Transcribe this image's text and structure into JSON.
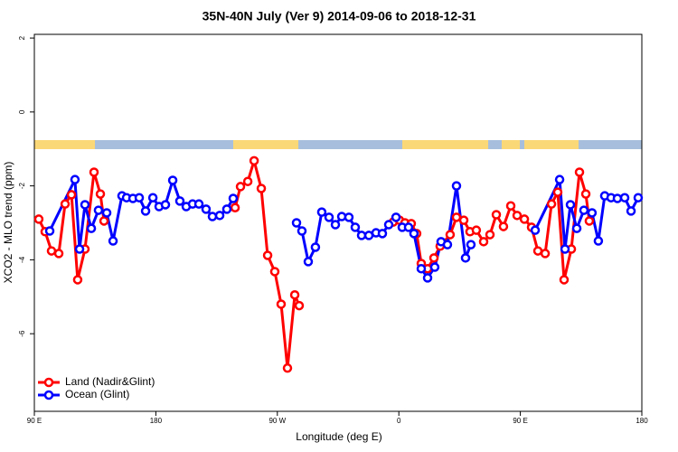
{
  "chart_data": {
    "type": "line",
    "title": "35N-40N July (Ver 9)   2014-09-06 to 2018-12-31",
    "x_label": "Longitude (deg E)",
    "y_label": "XCO2 - MLO trend (ppm)",
    "xlim": [
      90,
      540
    ],
    "xticks": [
      {
        "value": 90,
        "label": "90 E"
      },
      180,
      {
        "value": 270,
        "label": "90 W"
      },
      {
        "value": 360,
        "label": "0"
      },
      {
        "value": 450,
        "label": "90 E"
      },
      {
        "value": 540,
        "label": "180"
      }
    ],
    "ylim": [
      -8.1,
      2.1
    ],
    "yticks": [
      -6,
      -4,
      -2,
      0,
      2
    ],
    "legend": "bottom-left",
    "series": [
      {
        "name": "Land (Nadir&Glint)",
        "color": "#ff0000",
        "x": [
          93.3,
          98.0,
          102.7,
          108.1,
          112.8,
          117.5,
          122.1,
          127.5,
          134.2,
          138.9,
          141.6,
          null,
          238.7,
          242.7,
          248.1,
          252.8,
          258.1,
          262.8,
          268.1,
          272.8,
          277.5,
          282.9,
          286.2,
          null,
          355.8,
          360.5,
          364.5,
          369.2,
          373.2,
          376.6,
          381.3,
          386.0,
          390.6,
          398.0,
          402.7,
          408.1,
          412.7,
          417.4,
          422.8,
          427.5,
          432.2,
          437.5,
          442.9,
          447.6,
          453.0,
          458.3,
          463.0,
          468.4,
          473.1,
          477.7,
          482.4,
          487.8,
          493.8,
          498.5,
          501.1
        ],
        "values": [
          -2.9,
          -3.24,
          -3.76,
          -3.83,
          -2.49,
          -2.24,
          -4.54,
          -3.71,
          -1.63,
          -2.22,
          -2.95,
          null,
          -2.59,
          -2.02,
          -1.88,
          -1.32,
          -2.07,
          -3.88,
          -4.32,
          -5.2,
          -6.93,
          -4.95,
          -5.24,
          null,
          -2.98,
          -2.93,
          -3.0,
          -3.02,
          -3.29,
          -4.1,
          -4.24,
          -3.95,
          -3.63,
          -3.32,
          -2.85,
          -2.93,
          -3.24,
          -3.2,
          -3.51,
          -3.32,
          -2.78,
          -3.1,
          -2.54,
          -2.8,
          -2.9,
          -3.12,
          -3.76,
          -3.83,
          -2.49,
          -2.17,
          -4.54,
          -3.71,
          -1.63,
          -2.22,
          -2.95
        ]
      },
      {
        "name": "Ocean (Glint)",
        "color": "#0000ff",
        "x": [
          101.4,
          120.1,
          123.5,
          127.5,
          132.2,
          137.5,
          143.6,
          148.3,
          154.9,
          158.3,
          163.0,
          167.7,
          172.4,
          177.8,
          182.4,
          187.1,
          192.5,
          197.8,
          202.5,
          207.2,
          211.9,
          217.2,
          221.9,
          227.3,
          232.6,
          237.3,
          null,
          284.2,
          288.2,
          292.9,
          298.2,
          302.9,
          308.3,
          313.0,
          317.7,
          323.0,
          327.7,
          332.4,
          337.8,
          343.1,
          347.8,
          352.5,
          357.9,
          362.5,
          367.2,
          371.2,
          376.6,
          381.3,
          386.6,
          391.3,
          396.0,
          402.7,
          409.4,
          413.4,
          null,
          461.0,
          479.1,
          483.1,
          487.1,
          491.8,
          497.1,
          503.1,
          507.8,
          512.5,
          517.2,
          521.9,
          527.3,
          532.0,
          537.3
        ],
        "values": [
          -3.22,
          -1.83,
          -3.71,
          -2.51,
          -3.15,
          -2.66,
          -2.73,
          -3.49,
          -2.27,
          -2.32,
          -2.34,
          -2.32,
          -2.68,
          -2.32,
          -2.56,
          -2.51,
          -1.85,
          -2.41,
          -2.56,
          -2.49,
          -2.49,
          -2.63,
          -2.83,
          -2.8,
          -2.63,
          -2.34,
          null,
          -3.0,
          -3.22,
          -4.05,
          -3.66,
          -2.71,
          -2.85,
          -3.05,
          -2.83,
          -2.85,
          -3.12,
          -3.34,
          -3.34,
          -3.27,
          -3.29,
          -3.05,
          -2.85,
          -3.12,
          -3.12,
          -3.29,
          -4.24,
          -4.49,
          -4.2,
          -3.51,
          -3.59,
          -2.0,
          -3.95,
          -3.59,
          null,
          -3.2,
          -1.83,
          -3.71,
          -2.51,
          -3.15,
          -2.66,
          -2.73,
          -3.49,
          -2.27,
          -2.32,
          -2.34,
          -2.32,
          -2.68,
          -2.32
        ]
      }
    ]
  }
}
